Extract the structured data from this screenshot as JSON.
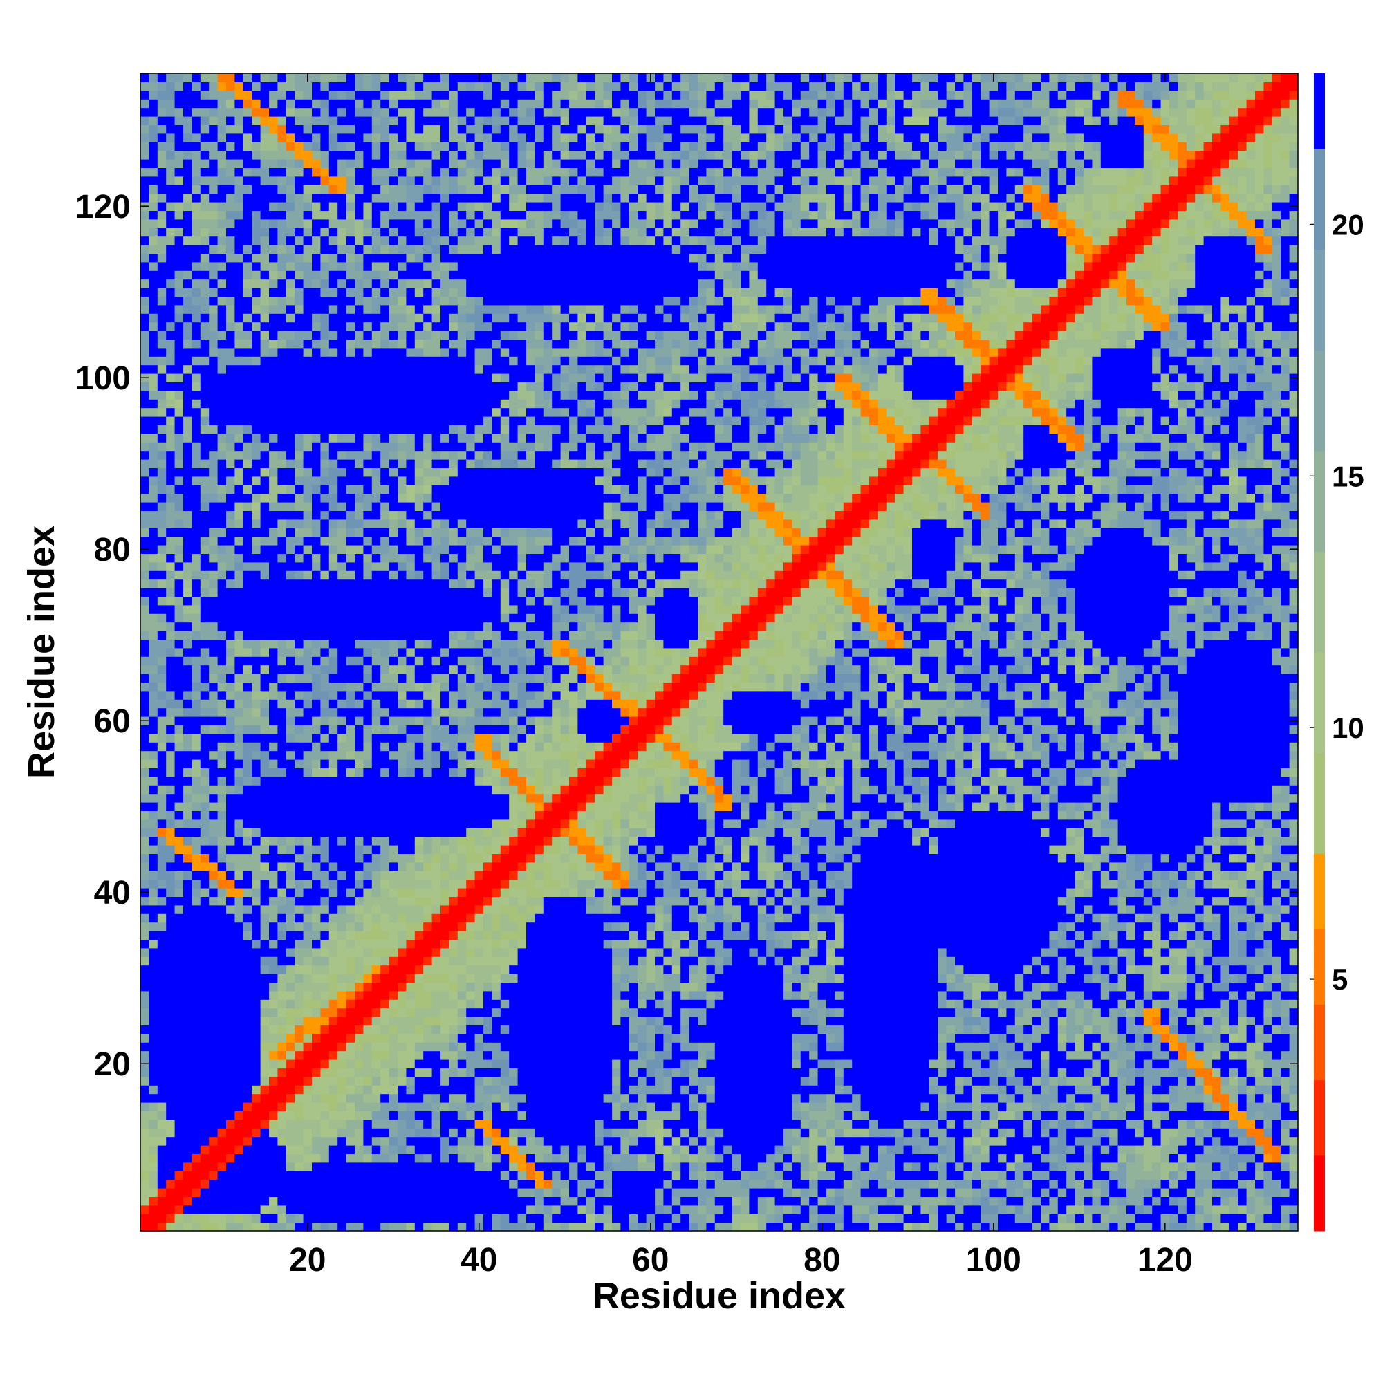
{
  "chart_data": {
    "type": "heatmap",
    "title": "",
    "xlabel": "Residue index",
    "ylabel": "Residue index",
    "n_residues": 135,
    "xlim": [
      0.5,
      135.5
    ],
    "ylim": [
      0.5,
      135.5
    ],
    "x_ticks": [
      20,
      40,
      60,
      80,
      100,
      120
    ],
    "y_ticks": [
      20,
      40,
      60,
      80,
      100,
      120
    ],
    "x_tick_labels": [
      "20",
      "40",
      "60",
      "80",
      "100",
      "120"
    ],
    "y_tick_labels": [
      "20",
      "40",
      "60",
      "80",
      "100",
      "120"
    ],
    "colorbar": {
      "range": [
        0,
        23
      ],
      "ticks": [
        5,
        10,
        15,
        20
      ],
      "tick_labels": [
        "5",
        "10",
        "15",
        "20"
      ],
      "placement": "right",
      "stops": [
        {
          "from": 0,
          "to": 1.5,
          "color": "#ff0000"
        },
        {
          "from": 1.5,
          "to": 3,
          "color": "#ff2a00"
        },
        {
          "from": 3,
          "to": 4.5,
          "color": "#ff5500"
        },
        {
          "from": 4.5,
          "to": 6,
          "color": "#ff7a00"
        },
        {
          "from": 6,
          "to": 7.5,
          "color": "#ff9900"
        },
        {
          "from": 7.5,
          "to": 9.5,
          "color": "#a8c27a"
        },
        {
          "from": 9.5,
          "to": 11.5,
          "color": "#a9c488"
        },
        {
          "from": 11.5,
          "to": 13.5,
          "color": "#9fbd8f"
        },
        {
          "from": 13.5,
          "to": 15.5,
          "color": "#92b29a"
        },
        {
          "from": 15.5,
          "to": 17.5,
          "color": "#85a8a6"
        },
        {
          "from": 17.5,
          "to": 19.5,
          "color": "#7a9fb0"
        },
        {
          "from": 19.5,
          "to": 21.5,
          "color": "#6f95b5"
        },
        {
          "from": 21.5,
          "to": 23,
          "color": "#0000ff"
        }
      ]
    },
    "diagonal_band_width": 2,
    "contact_lines": [
      {
        "x1": 10,
        "y1": 135,
        "x2": 24,
        "y2": 122,
        "color": "#ff7a00"
      },
      {
        "x1": 3,
        "y1": 47,
        "x2": 12,
        "y2": 40,
        "color": "#ff7a00"
      },
      {
        "x1": 40,
        "y1": 13,
        "x2": 48,
        "y2": 6,
        "color": "#ff7a00"
      },
      {
        "x1": 40,
        "y1": 58,
        "x2": 48,
        "y2": 49,
        "color": "#ff7a00"
      },
      {
        "x1": 48,
        "y1": 50,
        "x2": 57,
        "y2": 41,
        "color": "#ff7a00"
      },
      {
        "x1": 49,
        "y1": 69,
        "x2": 58,
        "y2": 61,
        "color": "#ff7a00"
      },
      {
        "x1": 60,
        "y1": 60,
        "x2": 69,
        "y2": 50,
        "color": "#ff7a00"
      },
      {
        "x1": 69,
        "y1": 89,
        "x2": 78,
        "y2": 80,
        "color": "#ff7a00"
      },
      {
        "x1": 80,
        "y1": 78,
        "x2": 89,
        "y2": 69,
        "color": "#ff7a00"
      },
      {
        "x1": 82,
        "y1": 100,
        "x2": 90,
        "y2": 92,
        "color": "#ff7a00"
      },
      {
        "x1": 92,
        "y1": 92,
        "x2": 99,
        "y2": 84,
        "color": "#ff7a00"
      },
      {
        "x1": 92,
        "y1": 110,
        "x2": 100,
        "y2": 102,
        "color": "#ff7a00"
      },
      {
        "x1": 102,
        "y1": 100,
        "x2": 110,
        "y2": 92,
        "color": "#ff7a00"
      },
      {
        "x1": 104,
        "y1": 122,
        "x2": 112,
        "y2": 114,
        "color": "#ff7a00"
      },
      {
        "x1": 112,
        "y1": 114,
        "x2": 120,
        "y2": 106,
        "color": "#ff7a00"
      },
      {
        "x1": 115,
        "y1": 133,
        "x2": 123,
        "y2": 125,
        "color": "#ff7a00"
      },
      {
        "x1": 124,
        "y1": 124,
        "x2": 132,
        "y2": 115,
        "color": "#ff7a00"
      },
      {
        "x1": 118,
        "y1": 26,
        "x2": 133,
        "y2": 9,
        "color": "#ff7a00"
      },
      {
        "x1": 16,
        "y1": 21,
        "x2": 38,
        "y2": 38,
        "color": "#ff9900"
      }
    ],
    "void_regions": [
      {
        "cx": 27,
        "cy": 50,
        "rx": 17,
        "ry": 4
      },
      {
        "cx": 25,
        "cy": 73,
        "rx": 18,
        "ry": 4
      },
      {
        "cx": 25,
        "cy": 98,
        "rx": 18,
        "ry": 5
      },
      {
        "cx": 10,
        "cy": 8,
        "rx": 8,
        "ry": 6
      },
      {
        "cx": 30,
        "cy": 5,
        "rx": 14,
        "ry": 4
      },
      {
        "cx": 50,
        "cy": 25,
        "rx": 6,
        "ry": 15
      },
      {
        "cx": 8,
        "cy": 25,
        "rx": 7,
        "ry": 14
      },
      {
        "cx": 52,
        "cy": 112,
        "rx": 14,
        "ry": 4
      },
      {
        "cx": 55,
        "cy": 60,
        "rx": 4,
        "ry": 3
      },
      {
        "cx": 63,
        "cy": 48,
        "rx": 3,
        "ry": 3
      },
      {
        "cx": 63,
        "cy": 72,
        "rx": 3,
        "ry": 4
      },
      {
        "cx": 73,
        "cy": 61,
        "rx": 5,
        "ry": 3
      },
      {
        "cx": 93,
        "cy": 100,
        "rx": 4,
        "ry": 3
      },
      {
        "cx": 93,
        "cy": 80,
        "rx": 3,
        "ry": 4
      },
      {
        "cx": 84,
        "cy": 113,
        "rx": 12,
        "ry": 4
      },
      {
        "cx": 105,
        "cy": 114,
        "rx": 4,
        "ry": 4
      },
      {
        "cx": 106,
        "cy": 92,
        "rx": 3,
        "ry": 3
      },
      {
        "cx": 115,
        "cy": 100,
        "rx": 4,
        "ry": 4
      },
      {
        "cx": 115,
        "cy": 75,
        "rx": 6,
        "ry": 8
      },
      {
        "cx": 128,
        "cy": 60,
        "rx": 7,
        "ry": 10
      },
      {
        "cx": 127,
        "cy": 113,
        "rx": 4,
        "ry": 4
      },
      {
        "cx": 88,
        "cy": 30,
        "rx": 6,
        "ry": 18
      },
      {
        "cx": 100,
        "cy": 40,
        "rx": 8,
        "ry": 10
      },
      {
        "cx": 120,
        "cy": 50,
        "rx": 6,
        "ry": 6
      },
      {
        "cx": 72,
        "cy": 20,
        "rx": 5,
        "ry": 12
      },
      {
        "cx": 58,
        "cy": 5,
        "rx": 3,
        "ry": 3
      },
      {
        "cx": 115,
        "cy": 127,
        "rx": 3,
        "ry": 3
      },
      {
        "cx": 45,
        "cy": 86,
        "rx": 10,
        "ry": 4
      }
    ]
  }
}
